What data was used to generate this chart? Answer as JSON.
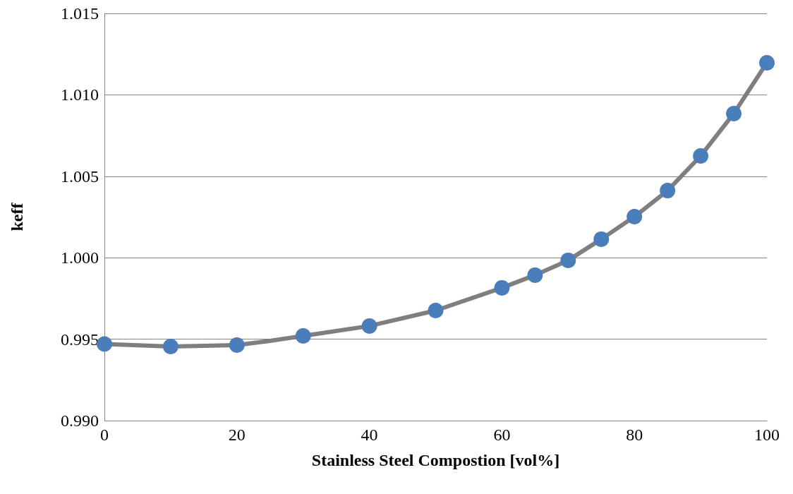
{
  "chart_data": {
    "type": "line",
    "xlabel": "Stainless Steel Compostion [vol%]",
    "ylabel": "keff",
    "series": [
      {
        "color": "#7f7f7f",
        "marker": "none",
        "x": [
          0,
          10,
          20,
          25,
          30,
          40,
          50,
          60,
          65,
          70,
          75,
          80,
          85,
          90,
          95,
          100
        ],
        "values": [
          0.9947,
          0.99455,
          0.99464,
          0.9949,
          0.9952,
          0.99581,
          0.99676,
          0.99815,
          0.99893,
          0.99984,
          1.00114,
          1.00252,
          1.00412,
          1.00625,
          1.00885,
          1.01197
        ]
      },
      {
        "type": "scatter",
        "color": "#4a7ebb",
        "marker": "circle",
        "x": [
          0,
          10,
          20,
          30,
          40,
          50,
          60,
          65,
          70,
          75,
          80,
          85,
          90,
          95,
          100
        ],
        "values": [
          0.9947,
          0.99455,
          0.99464,
          0.9952,
          0.99581,
          0.99676,
          0.99815,
          0.99893,
          0.99984,
          1.00114,
          1.00252,
          1.00412,
          1.00625,
          1.00885,
          1.01197
        ]
      }
    ],
    "xlim": [
      0,
      100
    ],
    "xticks": [
      0,
      20,
      40,
      60,
      80,
      100
    ],
    "ylim": [
      0.99,
      1.015
    ],
    "yticks": [
      {
        "value": 0.99,
        "label": "0.990"
      },
      {
        "value": 0.995,
        "label": "0.995"
      },
      {
        "value": 1.0,
        "label": "1.000"
      },
      {
        "value": 1.005,
        "label": "1.005"
      },
      {
        "value": 1.01,
        "label": "1.010"
      },
      {
        "value": 1.015,
        "label": "1.015"
      }
    ],
    "grid": "y"
  }
}
